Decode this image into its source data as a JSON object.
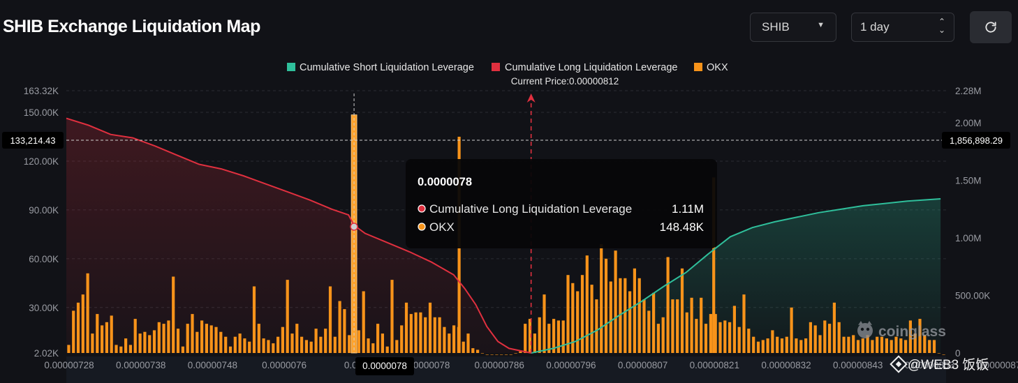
{
  "header": {
    "title": "SHIB Exchange Liquidation Map",
    "coin_select": {
      "value": "SHIB"
    },
    "range_select": {
      "value": "1 day"
    }
  },
  "watermark": {
    "brand": "coinglass",
    "overlay": "@WEB3 饭饭"
  },
  "colors": {
    "short_line": "#2fbf9b",
    "long_line": "#e0303f",
    "okx": "#f7931a",
    "background": "#111217",
    "crosshair": "#cfcfcf"
  },
  "chart_data": {
    "type": "bar",
    "title": "SHIB Exchange Liquidation Map",
    "legend": [
      {
        "label": "Cumulative Short Liquidation Leverage",
        "color": "#2fbf9b"
      },
      {
        "label": "Cumulative Long Liquidation Leverage",
        "color": "#e0303f"
      },
      {
        "label": "OKX",
        "color": "#f7931a"
      }
    ],
    "current_price_label": "Current Price:0.00000812",
    "current_price": 8.12e-06,
    "left_axis": {
      "min": 2020,
      "max": 163320,
      "ticks": [
        2020,
        30000,
        60000,
        90000,
        120000,
        150000,
        163320
      ],
      "tick_labels": [
        "2.02K",
        "30.00K",
        "60.00K",
        "90.00K",
        "120.00K",
        "150.00K",
        "163.32K"
      ]
    },
    "right_axis": {
      "min": 0,
      "max": 2280000,
      "ticks": [
        0,
        500000,
        1000000,
        1500000,
        2000000,
        2280000
      ],
      "tick_labels": [
        "0",
        "500.00K",
        "1.00M",
        "1.50M",
        "2.00M",
        "2.28M"
      ]
    },
    "x_tick_labels": [
      "0.00000728",
      "0.00000738",
      "0.00000748",
      "0.0000076",
      "0.000",
      "0.0000078",
      "0.00000786",
      "0.00000796",
      "0.00000807",
      "0.00000821",
      "0.00000832",
      "0.00000843",
      "0.00000853",
      "0.00000876",
      "0.0000088"
    ],
    "okx_bars": [
      7,
      28,
      33,
      38,
      51,
      14,
      26,
      19,
      21,
      25,
      7,
      6,
      11,
      7,
      23,
      14,
      15,
      13,
      16,
      21,
      20,
      22,
      49,
      17,
      6,
      20,
      26,
      15,
      22,
      20,
      19,
      18,
      15,
      12,
      6,
      12,
      14,
      11,
      9,
      43,
      20,
      11,
      10,
      8,
      12,
      18,
      47,
      14,
      20,
      12,
      10,
      9,
      17,
      12,
      17,
      43,
      12,
      34,
      29,
      13,
      8,
      16,
      40,
      11,
      8,
      20,
      14,
      6,
      47,
      10,
      19,
      33,
      26,
      27,
      27,
      24,
      33,
      24,
      24,
      18,
      14,
      19,
      18,
      9,
      14,
      5,
      4,
      2,
      1,
      1,
      1,
      1,
      1,
      1,
      2,
      3,
      20,
      23,
      14,
      24,
      38,
      20,
      23,
      22,
      22,
      50,
      45,
      40,
      50,
      62,
      44,
      35,
      69,
      60,
      46,
      65,
      48,
      48,
      40,
      54,
      48,
      35,
      28,
      39,
      20,
      24,
      61,
      35,
      35,
      54,
      27,
      36,
      23,
      36,
      20,
      26,
      26,
      21,
      22,
      21,
      31,
      18,
      38,
      17,
      12,
      9,
      10,
      11,
      16,
      12,
      11,
      12,
      30,
      11,
      10,
      11,
      21,
      19,
      13,
      22,
      20,
      33,
      21,
      12,
      12,
      13,
      10,
      11,
      13,
      10,
      12,
      12,
      11,
      10,
      12,
      11,
      10,
      22,
      14,
      23,
      13,
      10,
      10,
      2,
      1
    ],
    "okx_highlight": {
      "label": "0.0000078",
      "value": 148480
    },
    "okx_extra_peaks": [
      {
        "x": 7.99e-06,
        "value": 135000
      },
      {
        "x": 8.45e-06,
        "value": 110000
      }
    ],
    "long_cumulative": [
      [
        7.28e-06,
        2040000
      ],
      [
        7.32e-06,
        1980000
      ],
      [
        7.36e-06,
        1900000
      ],
      [
        7.4e-06,
        1870000
      ],
      [
        7.44e-06,
        1800000
      ],
      [
        7.48e-06,
        1720000
      ],
      [
        7.52e-06,
        1640000
      ],
      [
        7.56e-06,
        1600000
      ],
      [
        7.6e-06,
        1540000
      ],
      [
        7.64e-06,
        1470000
      ],
      [
        7.68e-06,
        1400000
      ],
      [
        7.72e-06,
        1330000
      ],
      [
        7.76e-06,
        1250000
      ],
      [
        7.79e-06,
        1200000
      ],
      [
        7.8e-06,
        1110000
      ],
      [
        7.82e-06,
        1040000
      ],
      [
        7.86e-06,
        960000
      ],
      [
        7.9e-06,
        880000
      ],
      [
        7.94e-06,
        790000
      ],
      [
        7.98e-06,
        680000
      ],
      [
        8e-06,
        560000
      ],
      [
        8.02e-06,
        420000
      ],
      [
        8.04e-06,
        230000
      ],
      [
        8.06e-06,
        100000
      ],
      [
        8.08e-06,
        40000
      ],
      [
        8.12e-06,
        0
      ]
    ],
    "short_cumulative": [
      [
        8.12e-06,
        0
      ],
      [
        8.16e-06,
        40000
      ],
      [
        8.2e-06,
        100000
      ],
      [
        8.24e-06,
        200000
      ],
      [
        8.28e-06,
        330000
      ],
      [
        8.32e-06,
        450000
      ],
      [
        8.36e-06,
        580000
      ],
      [
        8.4e-06,
        700000
      ],
      [
        8.44e-06,
        860000
      ],
      [
        8.48e-06,
        1010000
      ],
      [
        8.52e-06,
        1090000
      ],
      [
        8.56e-06,
        1140000
      ],
      [
        8.6e-06,
        1180000
      ],
      [
        8.64e-06,
        1220000
      ],
      [
        8.68e-06,
        1250000
      ],
      [
        8.72e-06,
        1280000
      ],
      [
        8.76e-06,
        1300000
      ],
      [
        8.8e-06,
        1320000
      ],
      [
        8.86e-06,
        1340000
      ]
    ],
    "crosshair": {
      "left_value_label": "133,214.43",
      "right_value_label": "1,856,898.29",
      "x_label": "0.0000078"
    },
    "tooltip": {
      "title": "0.0000078",
      "rows": [
        {
          "label": "Cumulative Long Liquidation Leverage",
          "value": "1.11M",
          "color": "#e0303f"
        },
        {
          "label": "OKX",
          "value": "148.48K",
          "color": "#f7931a"
        }
      ]
    }
  }
}
